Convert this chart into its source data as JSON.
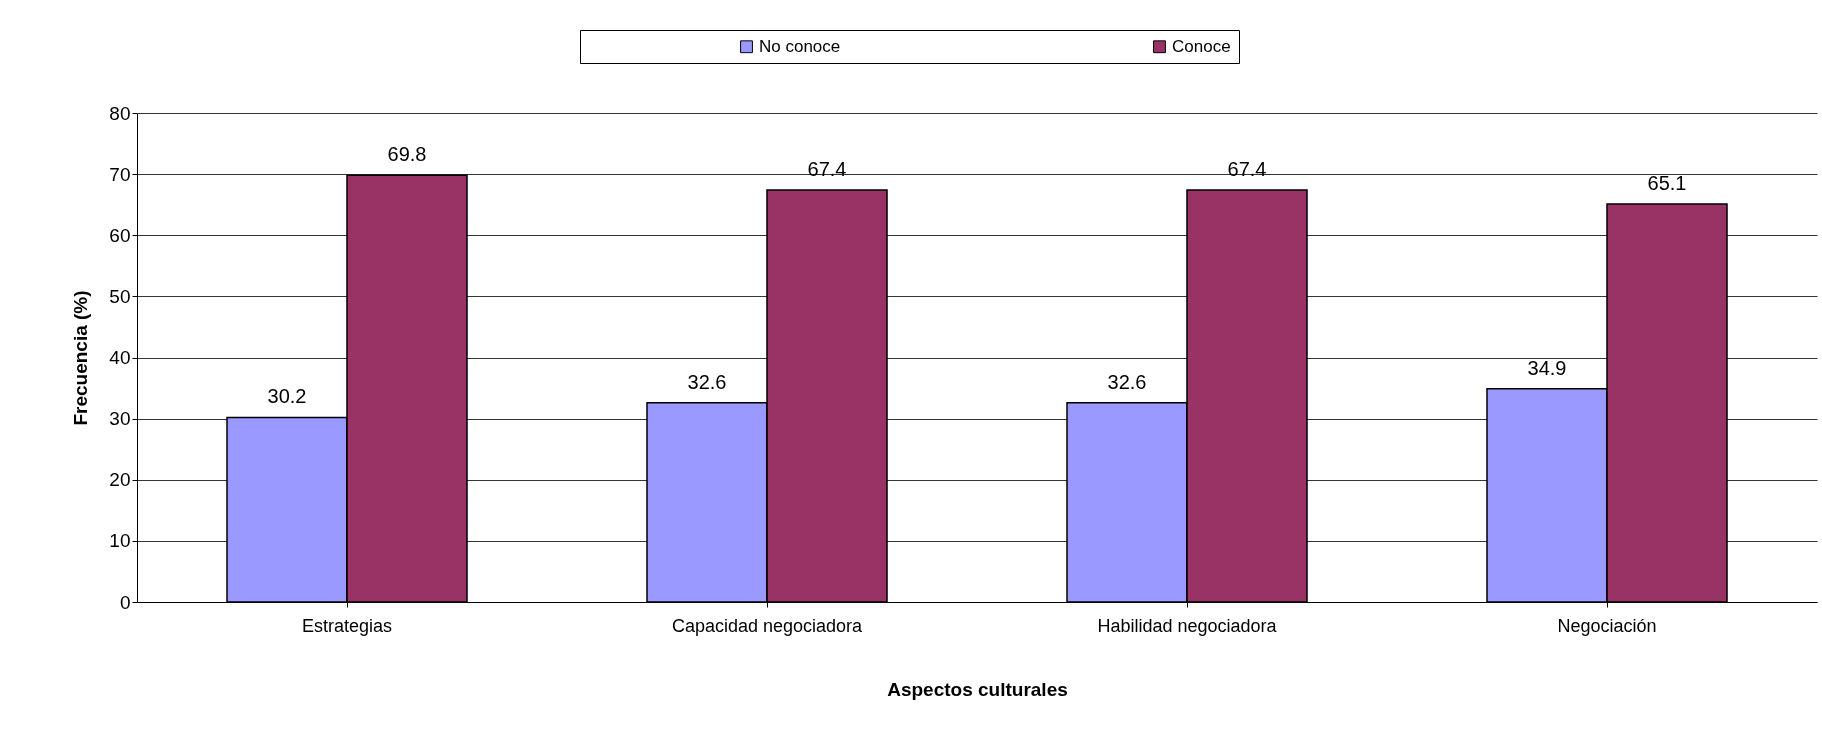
{
  "chart_data": {
    "type": "bar",
    "xlabel": "Aspectos culturales",
    "ylabel": "Frecuencia (%)",
    "categories": [
      "Estrategias",
      "Capacidad negociadora",
      "Habilidad negociadora",
      "Negociación"
    ],
    "series": [
      {
        "name": "No conoce",
        "color": "#9999ff",
        "values": [
          30.2,
          32.6,
          32.6,
          34.9
        ]
      },
      {
        "name": "Conoce",
        "color": "#993366",
        "values": [
          69.8,
          67.4,
          67.4,
          65.1
        ]
      }
    ],
    "ylim": [
      0,
      80
    ],
    "yticks": [
      0,
      10,
      20,
      30,
      40,
      50,
      60,
      70,
      80
    ],
    "grid": "y",
    "legend": "top",
    "data_labels": true
  }
}
